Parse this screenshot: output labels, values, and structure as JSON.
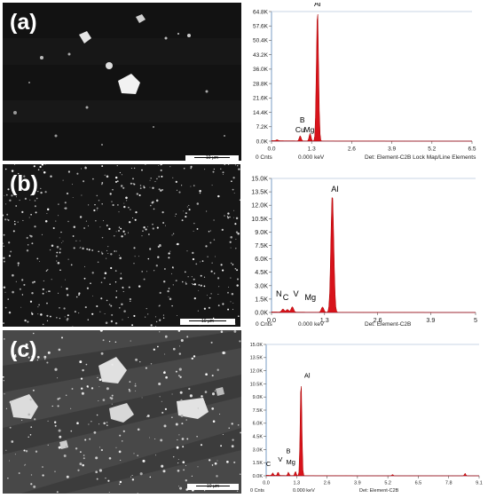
{
  "panels": [
    {
      "label": "(a)",
      "scale": "10 μm"
    },
    {
      "label": "(b)",
      "scale": "10 μm"
    },
    {
      "label": "(c)",
      "scale": "10 μm"
    }
  ],
  "chart_data": [
    {
      "type": "line",
      "title": "",
      "xlabel": "",
      "ylabel": "",
      "xlim": [
        0,
        6.5
      ],
      "ylim": [
        0,
        64800
      ],
      "x_ticks": [
        "0.0",
        "1.3",
        "2.6",
        "3.9",
        "5.2",
        "6.5"
      ],
      "x_tick_values": [
        0,
        1.3,
        2.6,
        3.9,
        5.2,
        6.5
      ],
      "y_ticks": [
        "0.0K",
        "7.2K",
        "14.4K",
        "21.6K",
        "28.8K",
        "36.0K",
        "43.2K",
        "50.4K",
        "57.6K",
        "64.8K"
      ],
      "footer": [
        "0 Cnts",
        "0.000 keV",
        "Det: Element-C2B Lock Map/Line Elements"
      ],
      "peaks": [
        {
          "label": "Al",
          "energy": 1.49,
          "counts": 66000
        },
        {
          "label": "Mg",
          "energy": 1.25,
          "counts": 3800
        },
        {
          "label": "Cu",
          "energy": 0.93,
          "counts": 2600
        },
        {
          "label": "B",
          "energy": 0.18,
          "counts": 500
        }
      ],
      "peak_labels": [
        {
          "text": "Al",
          "energy": 1.49,
          "counts": 66500
        },
        {
          "text": "B",
          "energy": 1.0,
          "counts": 8500
        },
        {
          "text": "Cu",
          "energy": 0.93,
          "counts": 3600
        },
        {
          "text": "Mg",
          "energy": 1.22,
          "counts": 3600
        }
      ]
    },
    {
      "type": "line",
      "title": "",
      "xlabel": "",
      "ylabel": "",
      "xlim": [
        0,
        5.0
      ],
      "ylim": [
        0,
        15000
      ],
      "x_ticks": [
        "0.0",
        "1.3",
        "2.6",
        "3.9",
        "5"
      ],
      "x_tick_values": [
        0,
        1.3,
        2.6,
        3.9,
        5.0
      ],
      "y_ticks": [
        "0.0K",
        "1.5K",
        "3.0K",
        "4.5K",
        "6.0K",
        "7.5K",
        "9.0K",
        "10.5K",
        "12.0K",
        "13.5K",
        "15.0K"
      ],
      "footer": [
        "0 Cnts",
        "0.000 keV",
        "Det: Element-C2B"
      ],
      "peaks": [
        {
          "label": "Al",
          "energy": 1.49,
          "counts": 13300
        },
        {
          "label": "Mg",
          "energy": 1.25,
          "counts": 600
        },
        {
          "label": "V",
          "energy": 0.51,
          "counts": 600
        },
        {
          "label": "C",
          "energy": 0.28,
          "counts": 350
        },
        {
          "label": "N",
          "energy": 0.39,
          "counts": 300
        }
      ],
      "peak_labels": [
        {
          "text": "Al",
          "energy": 1.55,
          "counts": 13300
        },
        {
          "text": "N",
          "energy": 0.18,
          "counts": 1600
        },
        {
          "text": "C",
          "energy": 0.35,
          "counts": 1200
        },
        {
          "text": "V",
          "energy": 0.6,
          "counts": 1600
        },
        {
          "text": "Mg",
          "energy": 0.95,
          "counts": 1200
        }
      ]
    },
    {
      "type": "line",
      "title": "",
      "xlabel": "",
      "ylabel": "",
      "xlim": [
        0,
        9.1
      ],
      "ylim": [
        0,
        15000
      ],
      "x_ticks": [
        "0.0",
        "1.3",
        "2.6",
        "3.9",
        "5.2",
        "6.5",
        "7.8",
        "9.1"
      ],
      "x_tick_values": [
        0,
        1.3,
        2.6,
        3.9,
        5.2,
        6.5,
        7.8,
        9.1
      ],
      "y_ticks": [
        "0.0K",
        "1.5K",
        "3.0K",
        "4.5K",
        "6.0K",
        "7.5K",
        "9.0K",
        "10.5K",
        "12.0K",
        "13.5K",
        "15.0K"
      ],
      "footer": [
        "0 Cnts",
        "0.000 keV",
        "Det: Element-C2B"
      ],
      "peaks": [
        {
          "label": "Al",
          "energy": 1.49,
          "counts": 11200
        },
        {
          "label": "Mg",
          "energy": 1.25,
          "counts": 500
        },
        {
          "label": "B",
          "energy": 0.95,
          "counts": 400
        },
        {
          "label": "V",
          "energy": 0.51,
          "counts": 400
        },
        {
          "label": "C",
          "energy": 0.28,
          "counts": 300
        },
        {
          "label": "",
          "energy": 8.5,
          "counts": 300
        },
        {
          "label": "",
          "energy": 5.4,
          "counts": 150
        }
      ],
      "peak_labels": [
        {
          "text": "Al",
          "energy": 1.75,
          "counts": 11000
        },
        {
          "text": "C",
          "energy": 0.1,
          "counts": 900
        },
        {
          "text": "V",
          "energy": 0.6,
          "counts": 1400
        },
        {
          "text": "B",
          "energy": 0.95,
          "counts": 2400
        },
        {
          "text": "Mg",
          "energy": 1.05,
          "counts": 1100
        }
      ]
    }
  ]
}
